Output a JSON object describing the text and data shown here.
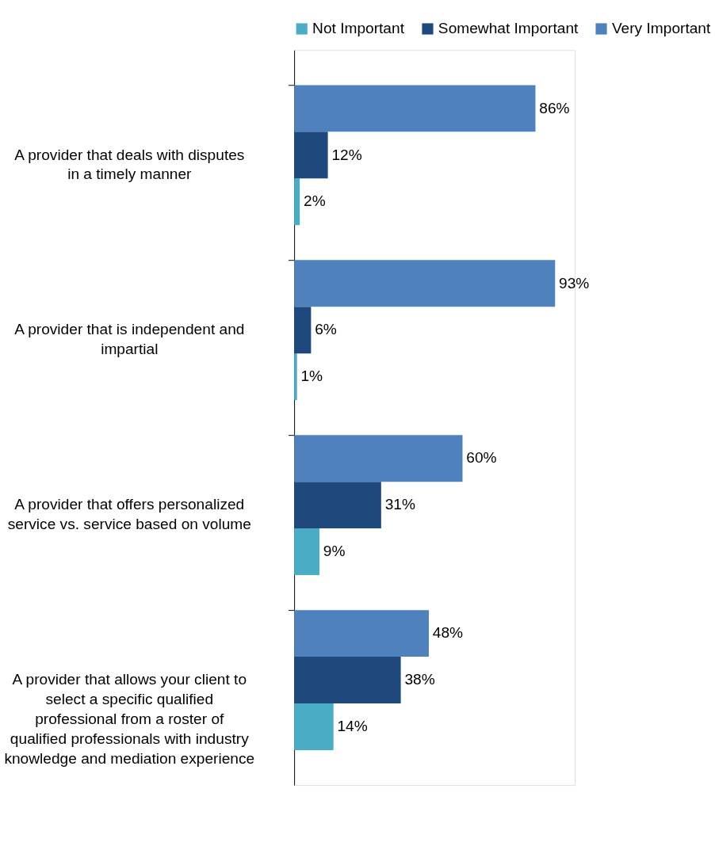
{
  "chart_data": {
    "type": "bar",
    "orientation": "horizontal",
    "legend": "top",
    "categories": [
      "A provider that deals with disputes in a timely manner",
      "A provider that is independent and impartial",
      "A provider that offers personalized service vs. service based on volume",
      "A provider that allows your client to select a specific qualified professional from a roster of qualified professionals with industry knowledge and mediation experience"
    ],
    "series": [
      {
        "name": "Not Important",
        "color": "#4bacc6",
        "values": [
          2,
          1,
          9,
          14
        ],
        "value_labels": [
          "2%",
          "1%",
          "9%",
          "14%"
        ]
      },
      {
        "name": "Somewhat Important",
        "color": "#1f497d",
        "values": [
          12,
          6,
          31,
          38
        ],
        "value_labels": [
          "12%",
          "6%",
          "31%",
          "38%"
        ]
      },
      {
        "name": "Very Important",
        "color": "#4f81bd",
        "values": [
          86,
          93,
          60,
          48
        ],
        "value_labels": [
          "86%",
          "93%",
          "60%",
          "48%"
        ]
      }
    ]
  }
}
